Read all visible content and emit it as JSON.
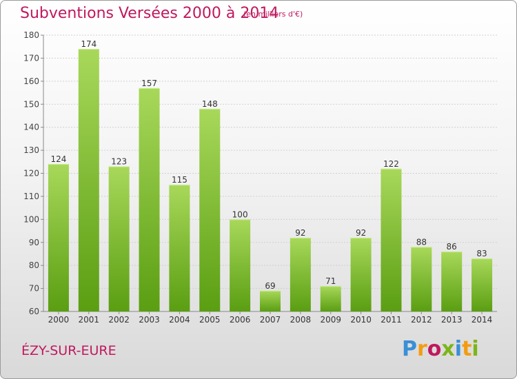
{
  "header": {
    "title": "Subventions Versées 2000 à 2014",
    "unit": "(en milliers d'€)"
  },
  "footer": {
    "commune": "ÉZY-SUR-EURE",
    "logo_text": "Proxiti"
  },
  "colors": {
    "title": "#c0185e",
    "bar_light": "#a8d85a",
    "bar_dark": "#5a9e12",
    "grid": "#d0d0d0",
    "logo": [
      "#3a8fd6",
      "#f39c12",
      "#c0185e",
      "#7cb518",
      "#3a8fd6",
      "#f39c12",
      "#7cb518"
    ]
  },
  "chart_data": {
    "type": "bar",
    "title": "Subventions Versées 2000 à 2014",
    "xlabel": "",
    "ylabel": "",
    "categories": [
      "2000",
      "2001",
      "2002",
      "2003",
      "2004",
      "2005",
      "2006",
      "2007",
      "2008",
      "2009",
      "2010",
      "2011",
      "2012",
      "2013",
      "2014"
    ],
    "values": [
      124,
      174,
      123,
      157,
      115,
      148,
      100,
      69,
      92,
      71,
      92,
      122,
      88,
      86,
      83
    ],
    "ylim": [
      60,
      180
    ],
    "yticks": [
      60,
      70,
      80,
      90,
      100,
      110,
      120,
      130,
      140,
      150,
      160,
      170,
      180
    ],
    "grid": true,
    "legend": "none"
  }
}
